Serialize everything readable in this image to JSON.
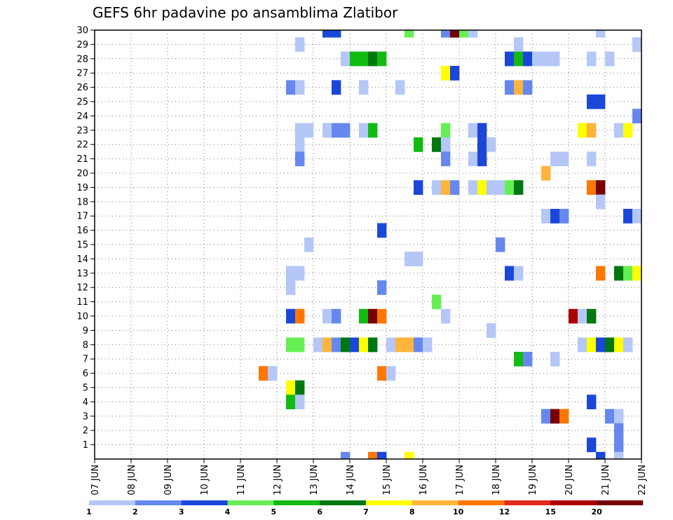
{
  "title": "GEFS 6hr padavine po ansamblima Zlatibor",
  "colors": [
    "#b4c7f7",
    "#6688ee",
    "#1b47d9",
    "#66ee55",
    "#11bb11",
    "#007711",
    "#ffff00",
    "#ffb43c",
    "#ff7700",
    "#e32b1f",
    "#aa0000",
    "#770000"
  ],
  "chart_data": {
    "type": "heatmap",
    "title": "GEFS 6hr padavine po ansamblima Zlatibor",
    "x_tick_labels": [
      "07 JUN",
      "08 JUN",
      "09 JUN",
      "10 JUN",
      "11 JUN",
      "12 JUN",
      "13 JUN",
      "14 JUN",
      "15 JUN",
      "16 JUN",
      "17 JUN",
      "18 JUN",
      "19 JUN",
      "20 JUN",
      "21 JUN",
      "22 JUN"
    ],
    "y_tick_labels": [
      "1",
      "2",
      "3",
      "4",
      "5",
      "6",
      "7",
      "8",
      "9",
      "10",
      "11",
      "12",
      "13",
      "14",
      "15",
      "16",
      "17",
      "18",
      "19",
      "20",
      "21",
      "22",
      "23",
      "24",
      "25",
      "26",
      "27",
      "28",
      "29",
      "30"
    ],
    "y_range": [
      0,
      30
    ],
    "grid": true,
    "colorbar": {
      "labels": [
        "1",
        "2",
        "3",
        "4",
        "5",
        "6",
        "7",
        "8",
        "10",
        "12",
        "15",
        "20"
      ],
      "levels": [
        1,
        2,
        3,
        4,
        5,
        6,
        7,
        8,
        10,
        12,
        15,
        20
      ]
    },
    "cell_layout": "each cell: [day_offset_from_07_JUN_in_6hr_steps, member_row, color_class_index]",
    "cells": [
      [
        25,
        30,
        2
      ],
      [
        26,
        30,
        2
      ],
      [
        34,
        30,
        3
      ],
      [
        38,
        30,
        1
      ],
      [
        39,
        30,
        11
      ],
      [
        40,
        30,
        3
      ],
      [
        41,
        30,
        0
      ],
      [
        55,
        30,
        0
      ],
      [
        22,
        29,
        0
      ],
      [
        46,
        29,
        0
      ],
      [
        59,
        29,
        0
      ],
      [
        27,
        28,
        0
      ],
      [
        28,
        28,
        4
      ],
      [
        29,
        28,
        4
      ],
      [
        30,
        28,
        5
      ],
      [
        31,
        28,
        4
      ],
      [
        45,
        28,
        2
      ],
      [
        46,
        28,
        4
      ],
      [
        47,
        28,
        2
      ],
      [
        48,
        28,
        0
      ],
      [
        49,
        28,
        0
      ],
      [
        50,
        28,
        0
      ],
      [
        54,
        28,
        0
      ],
      [
        56,
        28,
        0
      ],
      [
        38,
        27,
        6
      ],
      [
        39,
        27,
        2
      ],
      [
        21,
        26,
        1
      ],
      [
        22,
        26,
        0
      ],
      [
        26,
        26,
        2
      ],
      [
        29,
        26,
        0
      ],
      [
        33,
        26,
        0
      ],
      [
        45,
        26,
        1
      ],
      [
        46,
        26,
        7
      ],
      [
        47,
        26,
        1
      ],
      [
        54,
        25,
        2
      ],
      [
        55,
        25,
        2
      ],
      [
        59,
        24,
        1
      ],
      [
        22,
        23,
        0
      ],
      [
        23,
        23,
        0
      ],
      [
        25,
        23,
        0
      ],
      [
        26,
        23,
        1
      ],
      [
        27,
        23,
        1
      ],
      [
        29,
        23,
        0
      ],
      [
        30,
        23,
        4
      ],
      [
        38,
        23,
        3
      ],
      [
        41,
        23,
        0
      ],
      [
        42,
        23,
        2
      ],
      [
        53,
        23,
        6
      ],
      [
        54,
        23,
        7
      ],
      [
        57,
        23,
        0
      ],
      [
        58,
        23,
        6
      ],
      [
        22,
        22,
        0
      ],
      [
        35,
        22,
        4
      ],
      [
        37,
        22,
        5
      ],
      [
        38,
        22,
        0
      ],
      [
        42,
        22,
        2
      ],
      [
        43,
        22,
        0
      ],
      [
        22,
        21,
        1
      ],
      [
        38,
        21,
        1
      ],
      [
        41,
        21,
        0
      ],
      [
        42,
        21,
        2
      ],
      [
        50,
        21,
        0
      ],
      [
        51,
        21,
        0
      ],
      [
        54,
        21,
        0
      ],
      [
        49,
        20,
        7
      ],
      [
        35,
        19,
        2
      ],
      [
        37,
        19,
        0
      ],
      [
        38,
        19,
        7
      ],
      [
        39,
        19,
        1
      ],
      [
        41,
        19,
        0
      ],
      [
        42,
        19,
        6
      ],
      [
        43,
        19,
        0
      ],
      [
        44,
        19,
        0
      ],
      [
        45,
        19,
        3
      ],
      [
        46,
        19,
        5
      ],
      [
        54,
        19,
        8
      ],
      [
        55,
        19,
        11
      ],
      [
        55,
        18,
        0
      ],
      [
        49,
        17,
        0
      ],
      [
        50,
        17,
        2
      ],
      [
        51,
        17,
        1
      ],
      [
        58,
        17,
        2
      ],
      [
        59,
        17,
        0
      ],
      [
        31,
        16,
        2
      ],
      [
        23,
        15,
        0
      ],
      [
        44,
        15,
        1
      ],
      [
        34,
        14,
        0
      ],
      [
        35,
        14,
        0
      ],
      [
        21,
        13,
        0
      ],
      [
        22,
        13,
        0
      ],
      [
        45,
        13,
        2
      ],
      [
        46,
        13,
        0
      ],
      [
        55,
        13,
        8
      ],
      [
        57,
        13,
        5
      ],
      [
        58,
        13,
        3
      ],
      [
        59,
        13,
        6
      ],
      [
        21,
        12,
        0
      ],
      [
        31,
        12,
        1
      ],
      [
        37,
        11,
        3
      ],
      [
        21,
        10,
        2
      ],
      [
        22,
        10,
        8
      ],
      [
        25,
        10,
        0
      ],
      [
        26,
        10,
        1
      ],
      [
        29,
        10,
        4
      ],
      [
        30,
        10,
        11
      ],
      [
        31,
        10,
        8
      ],
      [
        38,
        10,
        0
      ],
      [
        52,
        10,
        10
      ],
      [
        53,
        10,
        0
      ],
      [
        54,
        10,
        5
      ],
      [
        43,
        9,
        0
      ],
      [
        21,
        8,
        3
      ],
      [
        22,
        8,
        3
      ],
      [
        24,
        8,
        0
      ],
      [
        25,
        8,
        7
      ],
      [
        26,
        8,
        1
      ],
      [
        27,
        8,
        5
      ],
      [
        28,
        8,
        2
      ],
      [
        29,
        8,
        6
      ],
      [
        30,
        8,
        5
      ],
      [
        32,
        8,
        0
      ],
      [
        33,
        8,
        7
      ],
      [
        34,
        8,
        7
      ],
      [
        35,
        8,
        1
      ],
      [
        36,
        8,
        0
      ],
      [
        53,
        8,
        0
      ],
      [
        54,
        8,
        6
      ],
      [
        55,
        8,
        2
      ],
      [
        56,
        8,
        5
      ],
      [
        57,
        8,
        6
      ],
      [
        58,
        8,
        0
      ],
      [
        46,
        7,
        4
      ],
      [
        47,
        7,
        1
      ],
      [
        50,
        7,
        0
      ],
      [
        18,
        6,
        8
      ],
      [
        19,
        6,
        0
      ],
      [
        31,
        6,
        8
      ],
      [
        32,
        6,
        0
      ],
      [
        21,
        5,
        6
      ],
      [
        22,
        5,
        5
      ],
      [
        21,
        4,
        4
      ],
      [
        22,
        4,
        0
      ],
      [
        54,
        4,
        2
      ],
      [
        49,
        3,
        1
      ],
      [
        50,
        3,
        11
      ],
      [
        51,
        3,
        8
      ],
      [
        56,
        3,
        1
      ],
      [
        57,
        3,
        0
      ],
      [
        57,
        2,
        1
      ],
      [
        54,
        1,
        2
      ],
      [
        57,
        1,
        1
      ],
      [
        27,
        0,
        1
      ],
      [
        30,
        0,
        8
      ],
      [
        31,
        0,
        2
      ],
      [
        34,
        0,
        6
      ],
      [
        55,
        0,
        2
      ],
      [
        57,
        0,
        0
      ]
    ]
  }
}
